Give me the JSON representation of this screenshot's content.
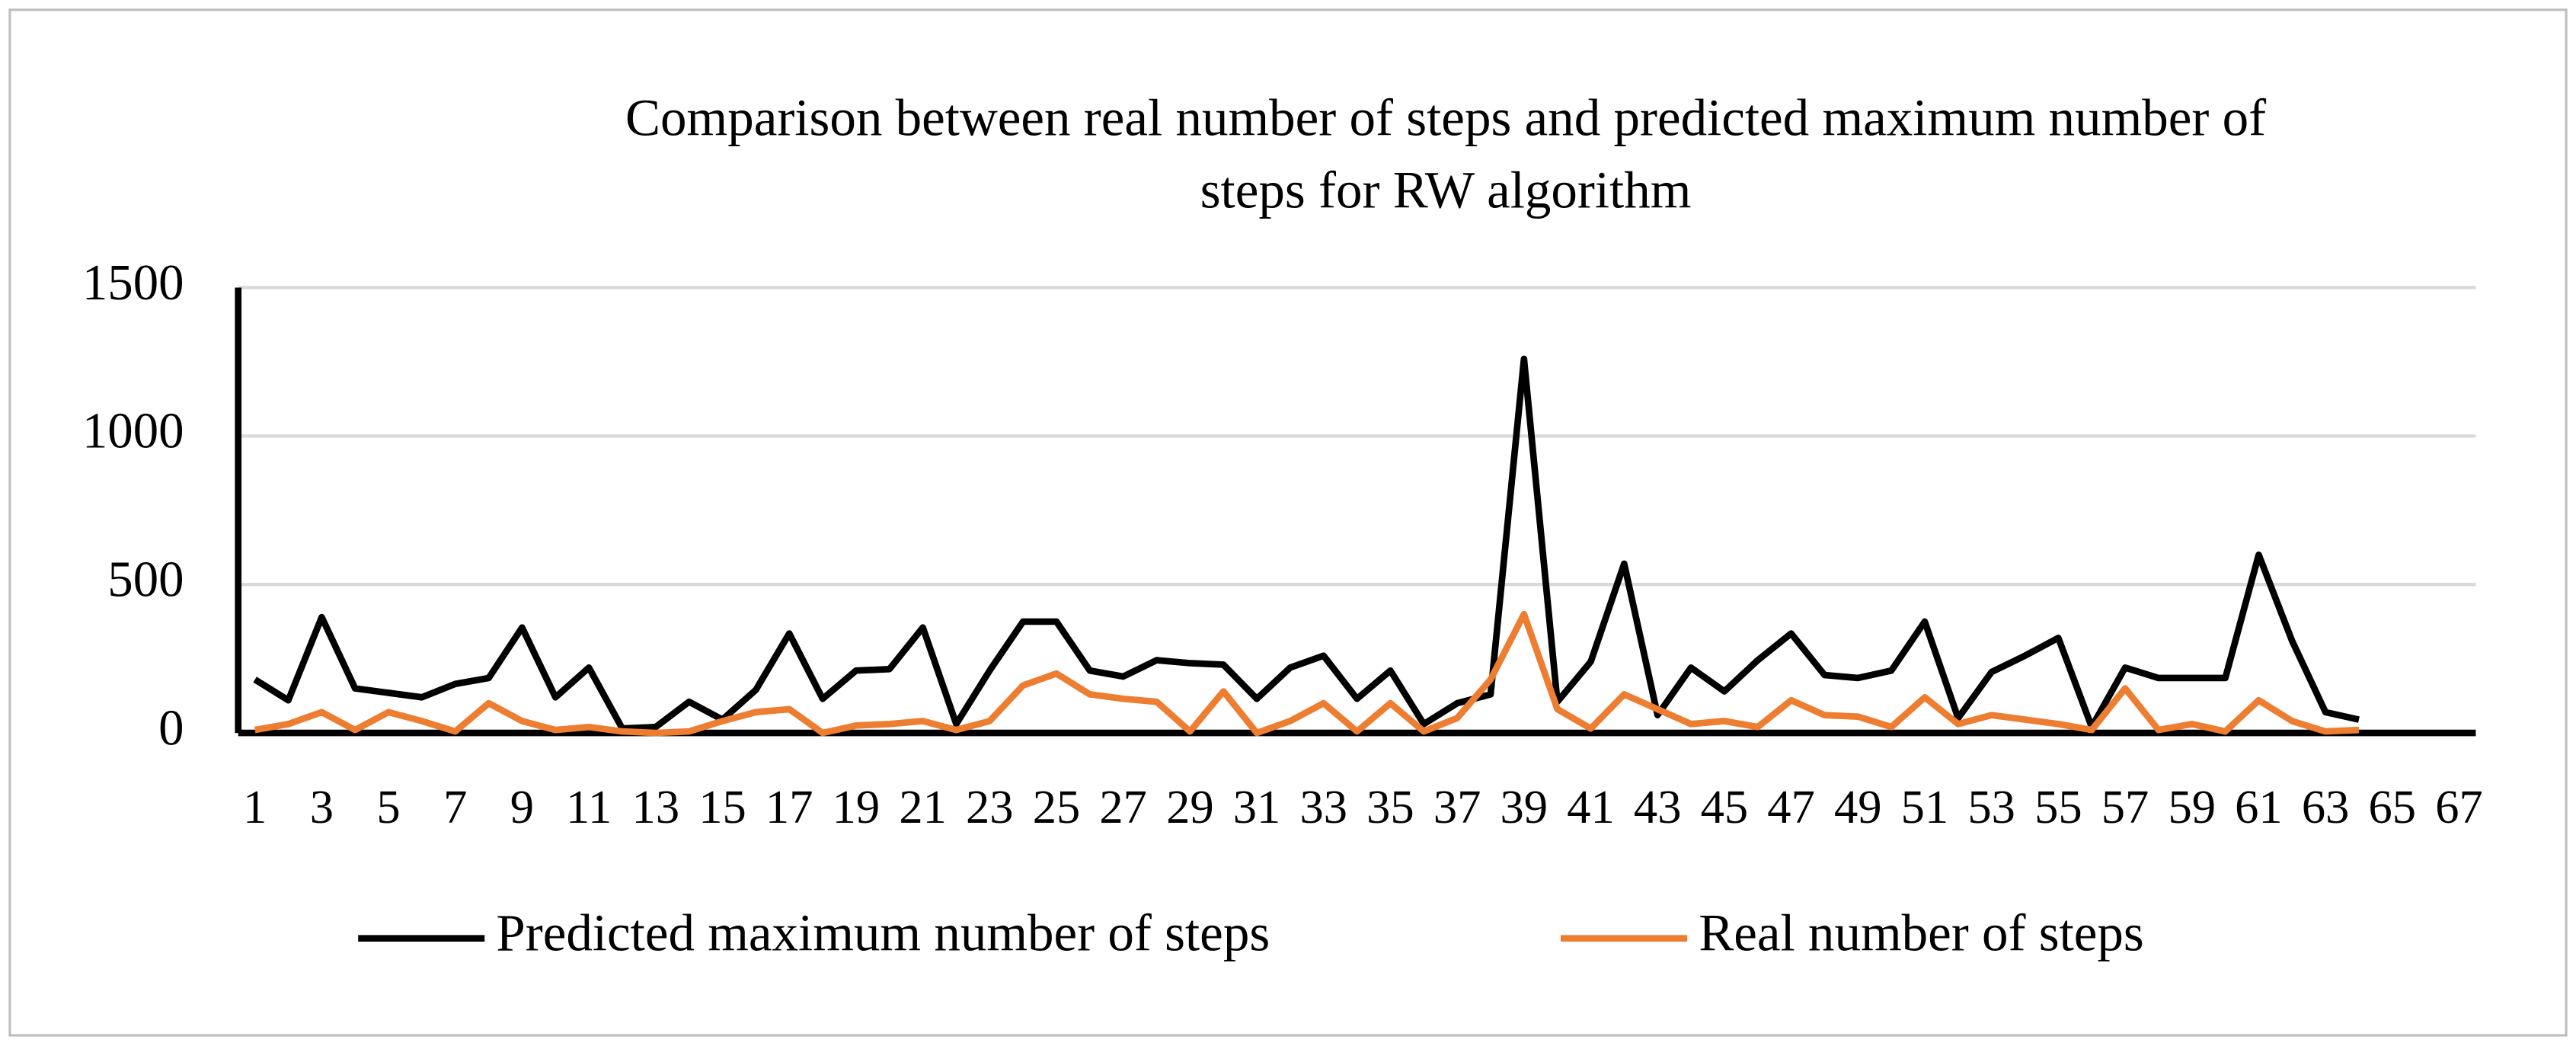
{
  "chart_data": {
    "type": "line",
    "title": [
      "Comparison between real number of steps and predicted maximum number of",
      "steps for RW algorithm"
    ],
    "categories": [
      1,
      null,
      3,
      null,
      5,
      null,
      7,
      null,
      9,
      null,
      11,
      null,
      13,
      null,
      15,
      null,
      17,
      null,
      19,
      null,
      21,
      null,
      23,
      null,
      25,
      null,
      27,
      null,
      29,
      null,
      31,
      null,
      33,
      null,
      35,
      null,
      37,
      null,
      39,
      null,
      41,
      null,
      43,
      null,
      45,
      null,
      47,
      null,
      49,
      null,
      51,
      null,
      53,
      null,
      55,
      null,
      57,
      null,
      59,
      null,
      61,
      null,
      63,
      null,
      65,
      null,
      67
    ],
    "series": [
      {
        "name": "Predicted maximum number of steps",
        "color": "#000000",
        "values": [
          180,
          110,
          390,
          150,
          135,
          120,
          165,
          185,
          355,
          120,
          220,
          15,
          20,
          105,
          45,
          145,
          335,
          115,
          210,
          215,
          355,
          30,
          210,
          375,
          375,
          210,
          190,
          245,
          235,
          230,
          115,
          220,
          260,
          115,
          210,
          30,
          100,
          130,
          1260,
          105,
          240,
          570,
          60,
          220,
          140,
          245,
          335,
          195,
          185,
          210,
          375,
          50,
          205,
          260,
          320,
          20,
          220,
          185,
          185,
          185,
          600,
          310,
          70,
          45,
          null,
          null,
          null
        ]
      },
      {
        "name": "Real number of steps",
        "color": "#ed7d31",
        "values": [
          10,
          30,
          70,
          10,
          70,
          40,
          5,
          100,
          40,
          10,
          20,
          5,
          0,
          5,
          40,
          70,
          80,
          0,
          25,
          30,
          40,
          10,
          40,
          160,
          200,
          130,
          115,
          105,
          5,
          140,
          0,
          40,
          100,
          5,
          100,
          5,
          50,
          180,
          400,
          80,
          15,
          130,
          80,
          30,
          40,
          20,
          110,
          60,
          55,
          20,
          120,
          30,
          60,
          45,
          30,
          10,
          150,
          10,
          30,
          5,
          110,
          40,
          5,
          10,
          null,
          null,
          null
        ]
      }
    ],
    "ylim": [
      0,
      1500
    ],
    "yticks": [
      0,
      500,
      1000,
      1500
    ],
    "grid": true,
    "legend": "bottom"
  }
}
